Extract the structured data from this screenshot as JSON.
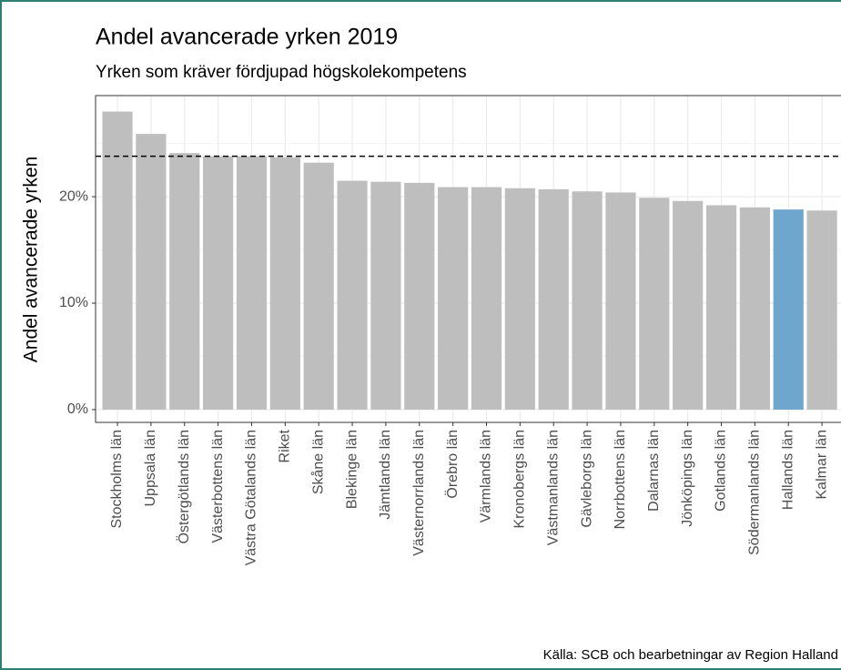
{
  "chart_data": {
    "type": "bar",
    "title": "Andel avancerade yrken 2019",
    "subtitle": "Yrken som kräver fördjupad högskolekompetens",
    "y_label": "Andel avancerade yrken",
    "caption": "Källa: SCB och bearbetningar av Region Halland",
    "categories": [
      "Stockholms län",
      "Uppsala län",
      "Östergötlands län",
      "Västerbottens län",
      "Västra Götalands län",
      "Riket",
      "Skåne län",
      "Blekinge län",
      "Jämtlands län",
      "Västernorrlands län",
      "Örebro län",
      "Värmlands län",
      "Kronobergs län",
      "Västmanlands län",
      "Gävleborgs län",
      "Norrbottens län",
      "Dalarnas län",
      "Jönköpings län",
      "Gotlands län",
      "Södermanlands län",
      "Hallands län",
      "Kalmar län"
    ],
    "values": [
      28.0,
      25.9,
      24.1,
      23.8,
      23.8,
      23.7,
      23.2,
      21.5,
      21.4,
      21.3,
      20.9,
      20.9,
      20.8,
      20.7,
      20.5,
      20.4,
      19.9,
      19.6,
      19.2,
      19.0,
      18.8,
      18.7
    ],
    "colors": [
      "#bebebe",
      "#bebebe",
      "#bebebe",
      "#bebebe",
      "#bebebe",
      "#bebebe",
      "#bebebe",
      "#bebebe",
      "#bebebe",
      "#bebebe",
      "#bebebe",
      "#bebebe",
      "#bebebe",
      "#bebebe",
      "#bebebe",
      "#bebebe",
      "#bebebe",
      "#bebebe",
      "#bebebe",
      "#bebebe",
      "#6fa6cd",
      "#bebebe"
    ],
    "reference_line": 23.8,
    "ylim": [
      -1.2,
      29.5
    ],
    "yticks": [
      {
        "value": 0,
        "label": "0%"
      },
      {
        "value": 10,
        "label": "10%"
      },
      {
        "value": 20,
        "label": "20%"
      }
    ],
    "minor_yticks": [
      5,
      15,
      25
    ],
    "grid": true
  }
}
